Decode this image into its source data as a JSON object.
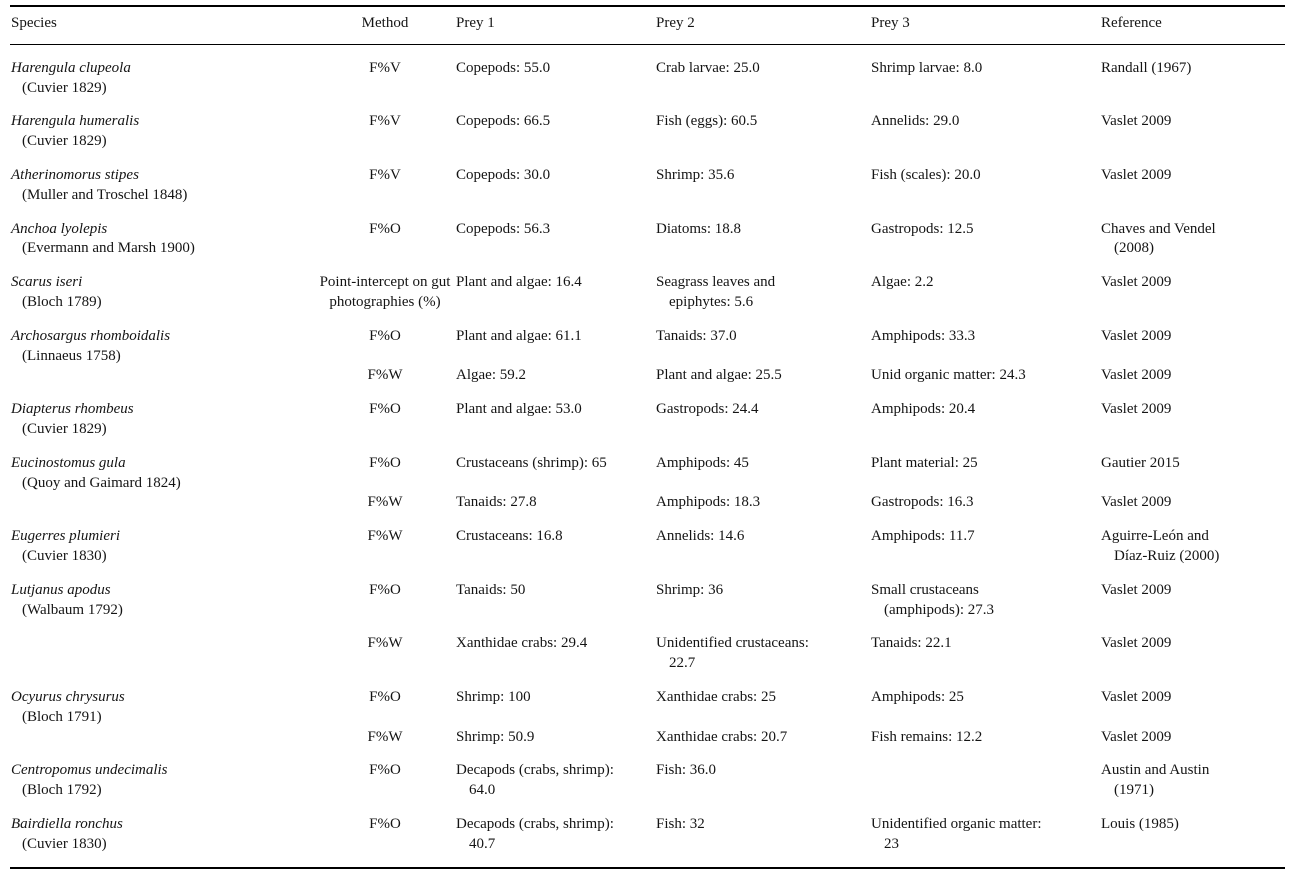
{
  "page": {
    "background": "#ffffff",
    "text_color": "#141414",
    "rule_color": "#000000"
  },
  "table": {
    "headers": [
      "Species",
      "Method",
      "Prey 1",
      "Prey 2",
      "Prey 3",
      "Reference"
    ],
    "rows": [
      {
        "species": "Harengula clupeola",
        "authority": "(Cuvier 1829)",
        "entries": [
          {
            "method": "F%V",
            "prey1": "Copepods: 55.0",
            "prey2": "Crab larvae: 25.0",
            "prey3": "Shrimp larvae: 8.0",
            "reference": "Randall (1967)"
          }
        ]
      },
      {
        "species": "Harengula humeralis",
        "authority": "(Cuvier 1829)",
        "entries": [
          {
            "method": "F%V",
            "prey1": "Copepods: 66.5",
            "prey2": "Fish (eggs): 60.5",
            "prey3": "Annelids: 29.0",
            "reference": "Vaslet 2009"
          }
        ]
      },
      {
        "species": "Atherinomorus stipes",
        "authority": "(Muller and Troschel 1848)",
        "entries": [
          {
            "method": "F%V",
            "prey1": "Copepods: 30.0",
            "prey2": "Shrimp: 35.6",
            "prey3": "Fish (scales): 20.0",
            "reference": "Vaslet 2009"
          }
        ]
      },
      {
        "species": "Anchoa lyolepis",
        "authority": "(Evermann and Marsh 1900)",
        "entries": [
          {
            "method": "F%O",
            "prey1": "Copepods: 56.3",
            "prey2": "Diatoms: 18.8",
            "prey3": "Gastropods: 12.5",
            "reference": "Chaves and Vendel (2008)"
          }
        ]
      },
      {
        "species": "Scarus iseri",
        "authority": "(Bloch 1789)",
        "entries": [
          {
            "method": "Point-intercept on gut photographies (%)",
            "prey1": "Plant and algae: 16.4",
            "prey2": "Seagrass leaves and epiphytes: 5.6",
            "prey3": "Algae: 2.2",
            "reference": "Vaslet 2009"
          }
        ]
      },
      {
        "species": "Archosargus rhomboidalis",
        "authority": "(Linnaeus 1758)",
        "entries": [
          {
            "method": "F%O",
            "prey1": "Plant and algae: 61.1",
            "prey2": "Tanaids: 37.0",
            "prey3": "Amphipods: 33.3",
            "reference": "Vaslet 2009"
          },
          {
            "method": "F%W",
            "prey1": "Algae: 59.2",
            "prey2": "Plant and algae: 25.5",
            "prey3": "Unid organic matter: 24.3",
            "reference": "Vaslet 2009"
          }
        ]
      },
      {
        "species": "Diapterus rhombeus",
        "authority": "(Cuvier 1829)",
        "entries": [
          {
            "method": "F%O",
            "prey1": "Plant and algae: 53.0",
            "prey2": "Gastropods: 24.4",
            "prey3": "Amphipods: 20.4",
            "reference": "Vaslet 2009"
          }
        ]
      },
      {
        "species": "Eucinostomus gula",
        "authority": "(Quoy and Gaimard 1824)",
        "entries": [
          {
            "method": "F%O",
            "prey1": "Crustaceans (shrimp): 65",
            "prey2": "Amphipods: 45",
            "prey3": "Plant material: 25",
            "reference": "Gautier 2015"
          },
          {
            "method": "F%W",
            "prey1": "Tanaids: 27.8",
            "prey2": "Amphipods: 18.3",
            "prey3": "Gastropods: 16.3",
            "reference": "Vaslet 2009"
          }
        ]
      },
      {
        "species": "Eugerres plumieri",
        "authority": "(Cuvier 1830)",
        "entries": [
          {
            "method": "F%W",
            "prey1": "Crustaceans: 16.8",
            "prey2": "Annelids: 14.6",
            "prey3": "Amphipods: 11.7",
            "reference": "Aguirre-León and Díaz-Ruiz (2000)"
          }
        ]
      },
      {
        "species": "Lutjanus apodus",
        "authority": "(Walbaum 1792)",
        "entries": [
          {
            "method": "F%O",
            "prey1": "Tanaids: 50",
            "prey2": "Shrimp: 36",
            "prey3": "Small crustaceans (amphipods): 27.3",
            "reference": "Vaslet 2009"
          },
          {
            "method": "F%W",
            "prey1": "Xanthidae crabs: 29.4",
            "prey2": "Unidentified crustaceans: 22.7",
            "prey3": "Tanaids: 22.1",
            "reference": "Vaslet 2009",
            "spaced": true
          }
        ]
      },
      {
        "species": "Ocyurus chrysurus",
        "authority": "(Bloch 1791)",
        "entries": [
          {
            "method": "F%O",
            "prey1": "Shrimp: 100",
            "prey2": "Xanthidae crabs: 25",
            "prey3": "Amphipods: 25",
            "reference": "Vaslet 2009"
          },
          {
            "method": "F%W",
            "prey1": "Shrimp: 50.9",
            "prey2": "Xanthidae crabs: 20.7",
            "prey3": "Fish remains: 12.2",
            "reference": "Vaslet 2009"
          }
        ]
      },
      {
        "species": "Centropomus undecimalis",
        "authority": "(Bloch 1792)",
        "entries": [
          {
            "method": "F%O",
            "prey1": "Decapods (crabs, shrimp): 64.0",
            "prey2": "Fish: 36.0",
            "prey3": "",
            "reference": "Austin and Austin (1971)"
          }
        ]
      },
      {
        "species": "Bairdiella ronchus",
        "authority": "(Cuvier 1830)",
        "entries": [
          {
            "method": "F%O",
            "prey1": "Decapods (crabs, shrimp): 40.7",
            "prey2": "Fish: 32",
            "prey3": "Unidentified organic matter: 23",
            "reference": "Louis (1985)"
          }
        ]
      }
    ]
  }
}
